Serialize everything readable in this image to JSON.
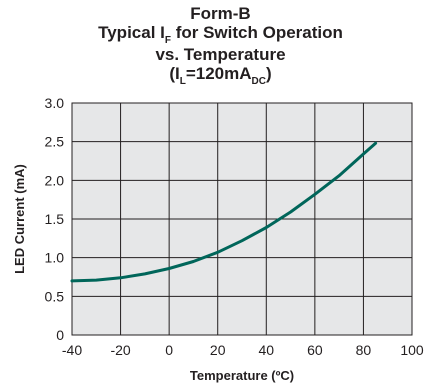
{
  "chart_data": {
    "type": "line",
    "title": {
      "line1": "Form-B",
      "line2_pre": "Typical I",
      "line2_sub": "F",
      "line2_post": " for Switch Operation",
      "line3": "vs. Temperature",
      "line4_pre": "(I",
      "line4_sub1": "L",
      "line4_mid": "=120mA",
      "line4_sub2": "DC",
      "line4_post": ")"
    },
    "xlabel": "Temperature (ºC)",
    "ylabel": "LED Current (mA)",
    "xlim": [
      -40,
      100
    ],
    "ylim": [
      0,
      3.0
    ],
    "xticks": [
      "-40",
      "-20",
      "0",
      "20",
      "40",
      "60",
      "80",
      "100"
    ],
    "yticks": [
      "0",
      "0.5",
      "1.0",
      "1.5",
      "2.0",
      "2.5",
      "3.0"
    ],
    "grid": true,
    "line_color": "#00665a",
    "series": [
      {
        "x": [
          -40,
          -30,
          -20,
          -10,
          0,
          10,
          20,
          30,
          40,
          50,
          60,
          70,
          80,
          85
        ],
        "y": [
          0.7,
          0.71,
          0.74,
          0.79,
          0.86,
          0.95,
          1.07,
          1.22,
          1.39,
          1.59,
          1.82,
          2.06,
          2.34,
          2.48
        ]
      }
    ]
  }
}
